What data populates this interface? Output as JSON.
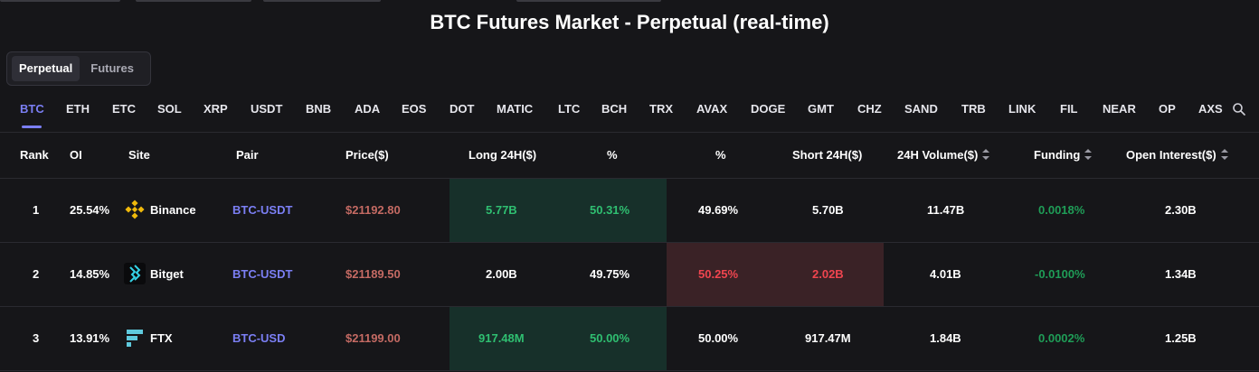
{
  "header": {
    "title": "BTC Futures Market - Perpetual (real-time)"
  },
  "tabs": [
    {
      "label": "Perpetual",
      "active": true
    },
    {
      "label": "Futures",
      "active": false
    }
  ],
  "coins": [
    "BTC",
    "ETH",
    "ETC",
    "SOL",
    "XRP",
    "USDT",
    "BNB",
    "ADA",
    "EOS",
    "DOT",
    "MATIC",
    "LTC",
    "BCH",
    "TRX",
    "AVAX",
    "DOGE",
    "GMT",
    "CHZ",
    "SAND",
    "TRB",
    "LINK",
    "FIL",
    "NEAR",
    "OP",
    "AXS"
  ],
  "active_coin": "BTC",
  "table": {
    "columns": {
      "rank": "Rank",
      "oi": "OI",
      "site": "Site",
      "pair": "Pair",
      "price": "Price($)",
      "long24h": "Long 24H($)",
      "long_pct": "%",
      "short_pct": "%",
      "short24h": "Short 24H($)",
      "volume": "24H Volume($)",
      "funding": "Funding",
      "oi_usd": "Open Interest($)"
    },
    "rows": [
      {
        "rank": "1",
        "oi": "25.54%",
        "site": "Binance",
        "site_icon": "binance-icon",
        "pair": "BTC-USDT",
        "price": "$21192.80",
        "long24h": "5.77B",
        "long_pct": "50.31%",
        "short_pct": "49.69%",
        "short24h": "5.70B",
        "volume": "11.47B",
        "funding": "0.0018%",
        "oi_usd": "2.30B",
        "dominant": "long"
      },
      {
        "rank": "2",
        "oi": "14.85%",
        "site": "Bitget",
        "site_icon": "bitget-icon",
        "pair": "BTC-USDT",
        "price": "$21189.50",
        "long24h": "2.00B",
        "long_pct": "49.75%",
        "short_pct": "50.25%",
        "short24h": "2.02B",
        "volume": "4.01B",
        "funding": "-0.0100%",
        "oi_usd": "1.34B",
        "dominant": "short"
      },
      {
        "rank": "3",
        "oi": "13.91%",
        "site": "FTX",
        "site_icon": "ftx-icon",
        "pair": "BTC-USD",
        "price": "$21199.00",
        "long24h": "917.48M",
        "long_pct": "50.00%",
        "short_pct": "50.00%",
        "short24h": "917.47M",
        "volume": "1.84B",
        "funding": "0.0002%",
        "oi_usd": "1.25B",
        "dominant": "long"
      }
    ]
  },
  "colors": {
    "accent": "#7b7ff4",
    "long_green": "#2fbf71",
    "short_red": "#f0454f",
    "price": "#c46a63"
  }
}
